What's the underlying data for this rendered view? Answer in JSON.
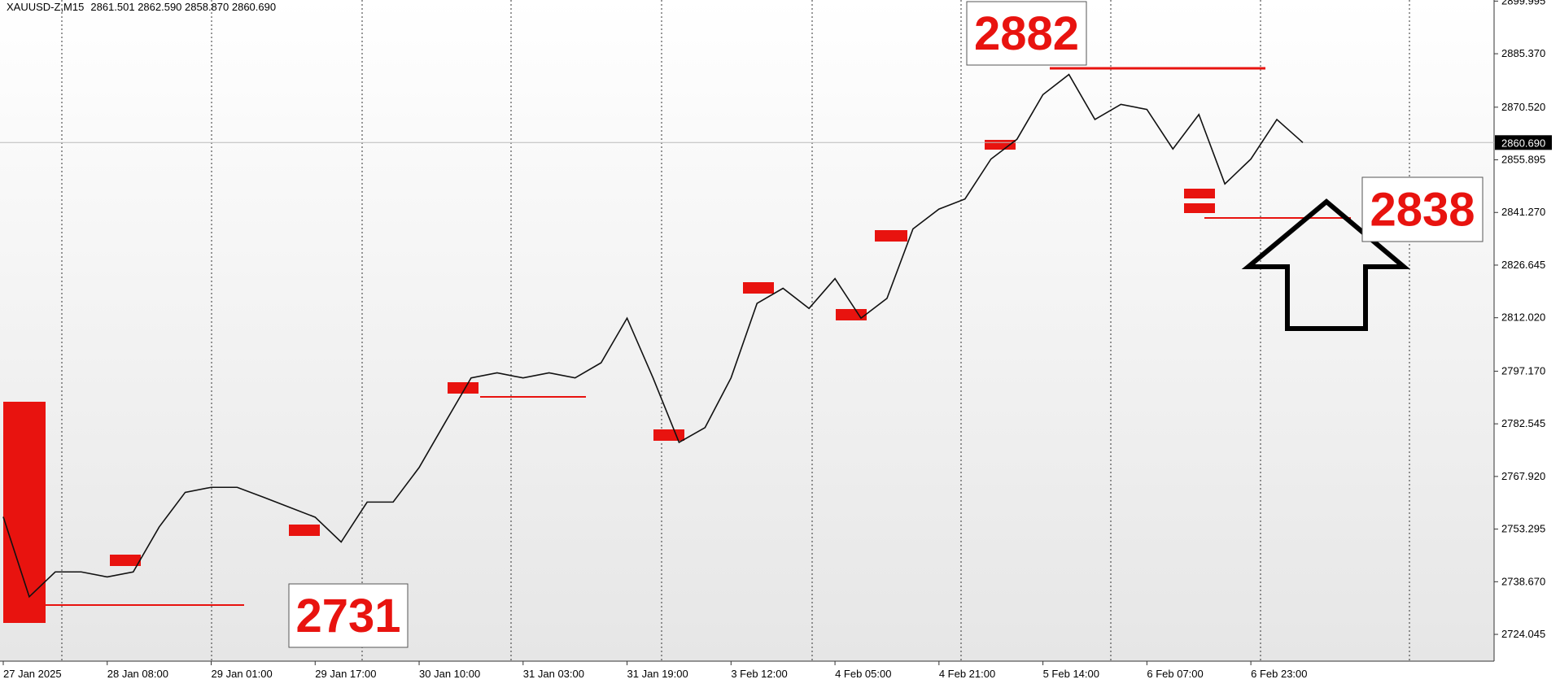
{
  "chart_data": {
    "type": "line",
    "title": "XAUUSD-Z,M15",
    "subtitle": "2861.501 2862.590 2858.870 2860.690",
    "categories": [
      "27 Jan 2025",
      null,
      null,
      null,
      "28 Jan 08:00",
      null,
      null,
      null,
      "29 Jan 01:00",
      null,
      null,
      null,
      "29 Jan 17:00",
      null,
      null,
      null,
      "30 Jan 10:00",
      null,
      null,
      null,
      "31 Jan 03:00",
      null,
      null,
      null,
      "31 Jan 19:00",
      null,
      null,
      null,
      "3 Feb 12:00",
      null,
      null,
      null,
      "4 Feb 05:00",
      null,
      null,
      null,
      "4 Feb 21:00",
      null,
      null,
      null,
      "5 Feb 14:00",
      null,
      null,
      null,
      "6 Feb 07:00",
      null,
      null,
      null,
      "6 Feb 23:00",
      null,
      null
    ],
    "series": [
      {
        "name": "XAUUSD-Z",
        "color": "#111111",
        "values": [
          2756.7,
          2734.5,
          2741.4,
          2741.4,
          2740.0,
          2741.4,
          2753.9,
          2763.5,
          2764.9,
          2764.9,
          2762.2,
          2759.4,
          2756.6,
          2749.7,
          2760.8,
          2760.8,
          2770.4,
          2782.9,
          2795.3,
          2796.7,
          2795.3,
          2796.7,
          2795.3,
          2799.5,
          2811.9,
          2795.3,
          2777.4,
          2781.5,
          2795.3,
          2816.0,
          2820.2,
          2814.6,
          2822.9,
          2811.9,
          2817.4,
          2836.7,
          2842.2,
          2845.0,
          2856.1,
          2861.6,
          2874.0,
          2879.6,
          2867.1,
          2871.3,
          2869.9,
          2858.9,
          2868.5,
          2849.2,
          2856.1,
          2867.1,
          2860.69
        ]
      }
    ],
    "ylim": [
      2716.6,
      2900.3
    ],
    "yticks": [
      {
        "value": 2899.995,
        "label": "2899.995"
      },
      {
        "value": 2885.37,
        "label": "2885.370"
      },
      {
        "value": 2870.52,
        "label": "2870.520"
      },
      {
        "value": 2855.895,
        "label": "2855.895"
      },
      {
        "value": 2841.27,
        "label": "2841.270"
      },
      {
        "value": 2826.645,
        "label": "2826.645"
      },
      {
        "value": 2812.02,
        "label": "2812.020"
      },
      {
        "value": 2797.17,
        "label": "2797.170"
      },
      {
        "value": 2782.545,
        "label": "2782.545"
      },
      {
        "value": 2767.92,
        "label": "2767.920"
      },
      {
        "value": 2753.295,
        "label": "2753.295"
      },
      {
        "value": 2738.67,
        "label": "2738.670"
      },
      {
        "value": 2724.045,
        "label": "2724.045"
      }
    ],
    "current_price": {
      "value": 2860.69,
      "label": "2860.690"
    },
    "annotations": [
      "2882",
      "2838",
      "2731"
    ]
  }
}
